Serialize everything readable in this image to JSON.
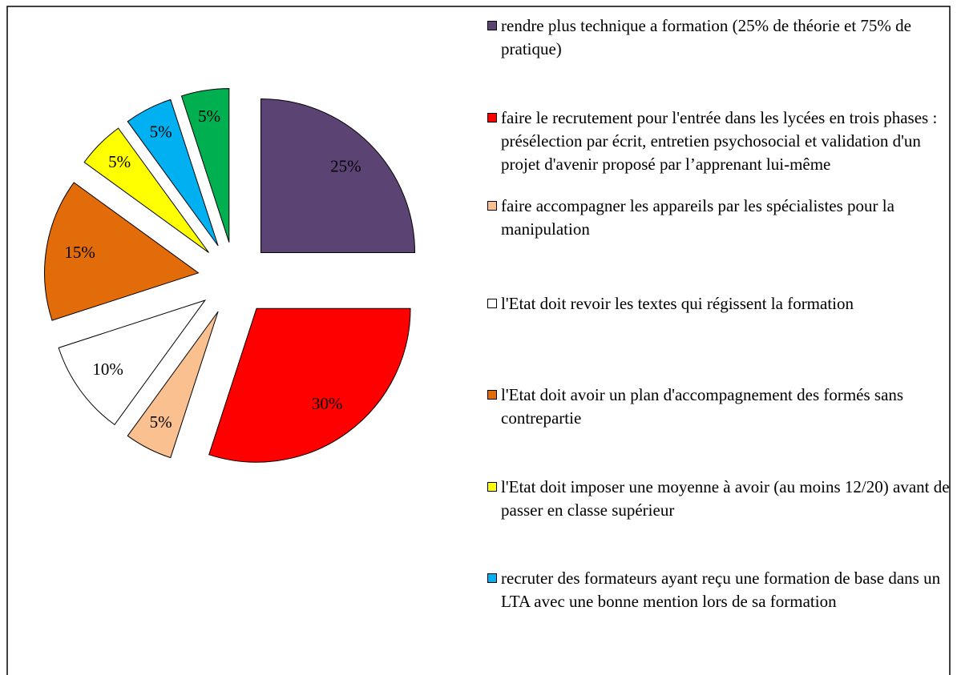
{
  "chart_data": {
    "type": "pie",
    "categories": [
      "rendre plus technique a formation (25% de théorie et 75% de pratique)",
      "faire le recrutement pour l'entrée dans les lycées en trois phases : présélection par écrit, entretien psychosocial et validation d'un projet d'avenir proposé par l’apprenant lui-même",
      "faire accompagner les appareils par les spécialistes pour la manipulation",
      "l'Etat doit revoir les textes qui régissent la formation",
      "l'Etat doit avoir un plan d'accompagnement des formés sans contrepartie",
      "l'Etat  doit imposer une moyenne à avoir (au moins 12/20) avant de passer en classe supérieur",
      "recruter des formateurs ayant reçu une formation de base dans un LTA avec une bonne mention lors de sa formation",
      null
    ],
    "values": [
      25,
      30,
      5,
      10,
      15,
      5,
      5,
      5
    ],
    "value_labels": [
      "25%",
      "30%",
      "5%",
      "10%",
      "15%",
      "5%",
      "5%",
      "5%"
    ],
    "colors": [
      "#5b4373",
      "#ff0000",
      "#fac090",
      "#ffffff",
      "#e36c0a",
      "#ffff00",
      "#00b0f0",
      "#00b050"
    ],
    "legend": "right"
  }
}
